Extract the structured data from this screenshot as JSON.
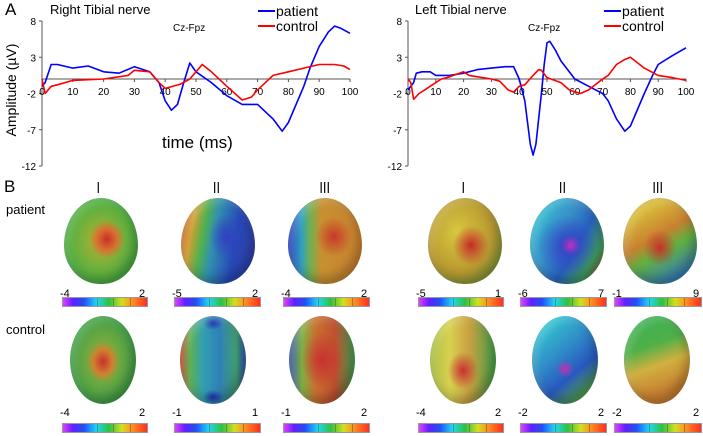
{
  "panel_labels": {
    "a": "A",
    "b": "B"
  },
  "chart_data": [
    {
      "type": "line",
      "title": "Right Tibial nerve",
      "montage": "Cz-Fpz",
      "xlabel": "time (ms)",
      "ylabel": "Amplitude (µV)",
      "xlim": [
        0,
        100
      ],
      "ylim": [
        -12,
        8
      ],
      "xticks": [
        "0",
        "10",
        "20",
        "30",
        "40",
        "50",
        "60",
        "70",
        "80",
        "90",
        "100"
      ],
      "yticks": [
        "8",
        "3",
        "-2",
        "-7",
        "-12"
      ],
      "legend": {
        "placement": "top-right"
      },
      "series": [
        {
          "name": "patient",
          "color": "#0000ff",
          "x": [
            0,
            1,
            3,
            5,
            10,
            15,
            20,
            25,
            30,
            35,
            38,
            40,
            42,
            44,
            46,
            48,
            50,
            55,
            60,
            65,
            70,
            75,
            78,
            80,
            85,
            87,
            90,
            93,
            95,
            97,
            100
          ],
          "y": [
            -1,
            -0.5,
            2,
            2,
            1.5,
            1.8,
            1,
            0.8,
            1.7,
            1,
            -0.5,
            -3,
            -4.3,
            -3.5,
            -0.5,
            2.2,
            1,
            -0.5,
            -2.3,
            -3.5,
            -3.5,
            -5.5,
            -7.2,
            -6,
            -1,
            1.5,
            4.5,
            6.5,
            7.3,
            7,
            6.3
          ]
        },
        {
          "name": "control",
          "color": "#ff0000",
          "x": [
            0,
            1,
            3,
            5,
            10,
            20,
            28,
            30,
            35,
            38,
            40,
            45,
            48,
            50,
            52,
            55,
            60,
            65,
            68,
            70,
            75,
            80,
            85,
            90,
            95,
            98,
            100
          ],
          "y": [
            0,
            -2,
            -1,
            -0.8,
            -0.2,
            0,
            0.5,
            1.2,
            1,
            -0.5,
            -1.3,
            -0.7,
            0,
            1,
            2,
            1,
            -1,
            -2.9,
            -2.5,
            -1.5,
            0.5,
            1,
            1.5,
            2,
            2,
            1.8,
            1.3
          ]
        }
      ]
    },
    {
      "type": "line",
      "title": "Left Tibial nerve",
      "montage": "Cz-Fpz",
      "xlabel": "",
      "ylabel": "",
      "xlim": [
        0,
        100
      ],
      "ylim": [
        -12,
        8
      ],
      "xticks": [
        "0",
        "10",
        "20",
        "30",
        "40",
        "50",
        "60",
        "70",
        "80",
        "90",
        "100"
      ],
      "yticks": [
        "8",
        "3",
        "-2",
        "-7",
        "-12"
      ],
      "legend": {
        "placement": "top-right"
      },
      "series": [
        {
          "name": "patient",
          "color": "#0000ff",
          "x": [
            0,
            2,
            3,
            5,
            8,
            10,
            15,
            20,
            25,
            30,
            35,
            38,
            40,
            42,
            44,
            45,
            46,
            48,
            49,
            50,
            51,
            53,
            55,
            60,
            65,
            70,
            72,
            75,
            78,
            80,
            85,
            88,
            90,
            95,
            100
          ],
          "y": [
            -1.5,
            -0.5,
            0.8,
            1,
            1,
            0.5,
            0.5,
            0.8,
            1.3,
            1.5,
            1.7,
            1.7,
            0,
            -3,
            -9,
            -10.5,
            -9,
            -2,
            2,
            5,
            5.2,
            4,
            2.5,
            0,
            -1,
            -2,
            -3,
            -5.5,
            -7.2,
            -6.5,
            -2,
            0.5,
            2,
            3.2,
            4.3
          ]
        },
        {
          "name": "control",
          "color": "#ff0000",
          "x": [
            0,
            1,
            2,
            4,
            6,
            10,
            12,
            15,
            20,
            22,
            25,
            30,
            33,
            36,
            38,
            40,
            42,
            45,
            47,
            48,
            50,
            55,
            58,
            62,
            65,
            70,
            72,
            75,
            78,
            80,
            85,
            90,
            95,
            100
          ],
          "y": [
            0,
            -0.5,
            -2.8,
            -2,
            -1.5,
            -0.5,
            0,
            0.3,
            1,
            0.5,
            0.3,
            0,
            -0.3,
            -1.5,
            -1.8,
            -1,
            -0.8,
            0.5,
            1.3,
            1.2,
            0.2,
            -0.5,
            -1.5,
            -2,
            -1.5,
            0,
            0.5,
            2,
            2.7,
            3,
            1.5,
            0.5,
            0.2,
            -0.2
          ]
        }
      ]
    }
  ],
  "topomaps": {
    "columns": [
      "I",
      "II",
      "III",
      "I",
      "II",
      "III"
    ],
    "rows": [
      "patient",
      "control"
    ],
    "scales": {
      "patient": [
        [
          "-4",
          "2"
        ],
        [
          "-5",
          "2"
        ],
        [
          "-4",
          "2"
        ],
        [
          "-5",
          "1"
        ],
        [
          "-6",
          "7"
        ],
        [
          "-1",
          "9"
        ]
      ],
      "control": [
        [
          "-4",
          "2"
        ],
        [
          "-1",
          "1"
        ],
        [
          "-1",
          "2"
        ],
        [
          "-4",
          "2"
        ],
        [
          "-2",
          "2"
        ],
        [
          "-2",
          "2"
        ]
      ]
    }
  }
}
